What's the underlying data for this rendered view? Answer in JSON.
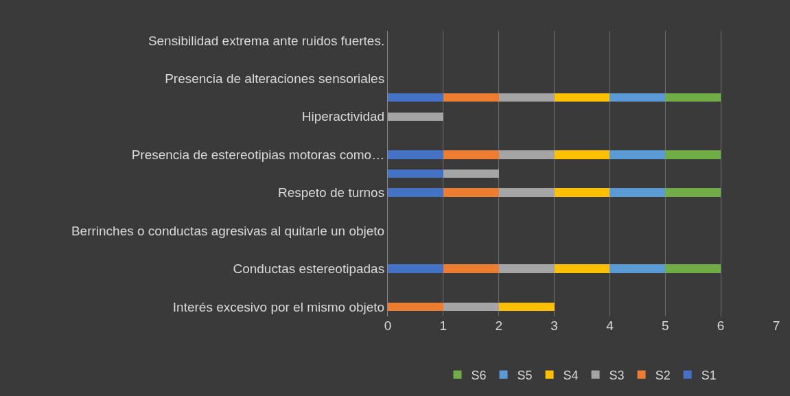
{
  "chart_data": {
    "type": "bar",
    "orientation": "horizontal",
    "stacked": true,
    "categories": [
      "Sensibilidad extrema ante ruidos fuertes.",
      null,
      "Presencia de alteraciones sensoriales",
      null,
      "Hiperactividad",
      null,
      "Presencia de estereotipias motoras como…",
      null,
      "Respeto de turnos",
      null,
      "Berrinches o conductas agresivas al quitarle un objeto",
      null,
      "Conductas estereotipadas",
      null,
      "Interés excesivo por el mismo objeto"
    ],
    "series": [
      {
        "name": "S1",
        "color": "#4472c4",
        "values": [
          0,
          0,
          0,
          1,
          0,
          0,
          1,
          1,
          1,
          0,
          0,
          0,
          1,
          0,
          0
        ]
      },
      {
        "name": "S2",
        "color": "#ed7d31",
        "values": [
          0,
          0,
          0,
          1,
          0,
          0,
          1,
          0,
          1,
          0,
          0,
          0,
          1,
          0,
          1
        ]
      },
      {
        "name": "S3",
        "color": "#a5a5a5",
        "values": [
          0,
          0,
          0,
          1,
          1,
          0,
          1,
          1,
          1,
          0,
          0,
          0,
          1,
          0,
          1
        ]
      },
      {
        "name": "S4",
        "color": "#ffc000",
        "values": [
          0,
          0,
          0,
          1,
          0,
          0,
          1,
          0,
          1,
          0,
          0,
          0,
          1,
          0,
          1
        ]
      },
      {
        "name": "S5",
        "color": "#5b9bd5",
        "values": [
          0,
          0,
          0,
          1,
          0,
          0,
          1,
          0,
          1,
          0,
          0,
          0,
          1,
          0,
          0
        ]
      },
      {
        "name": "S6",
        "color": "#70ad47",
        "values": [
          0,
          0,
          0,
          1,
          0,
          0,
          1,
          0,
          1,
          0,
          0,
          0,
          1,
          0,
          0
        ]
      }
    ],
    "xlim": [
      0,
      7
    ],
    "xticks": [
      0,
      1,
      2,
      3,
      4,
      5,
      6,
      7
    ],
    "grid": "x",
    "legend": "bottom"
  }
}
